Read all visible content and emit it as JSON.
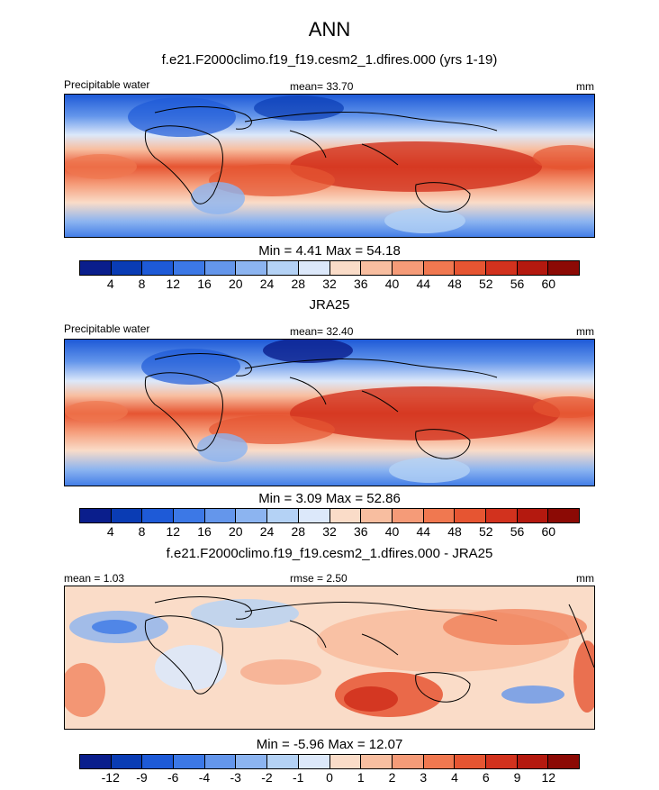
{
  "title": "ANN",
  "panels": [
    {
      "subtitle": "f.e21.F2000climo.f19_f19.cesm2_1.dfires.000 (yrs 1-19)",
      "left_label": "Precipitable water",
      "center_label": "mean=  33.70",
      "right_label": "mm",
      "minmax": "Min =   4.41 Max =  54.18",
      "colorbar": {
        "colors": [
          "#0a1e8c",
          "#0a3cb4",
          "#1e5ad7",
          "#3c78e6",
          "#6496eb",
          "#8cb4f0",
          "#b4d2f5",
          "#dce8fa",
          "#fadcc8",
          "#f8bea0",
          "#f59b78",
          "#f07850",
          "#e65532",
          "#d2321e",
          "#b4190f",
          "#8c0a05"
        ],
        "ticks": [
          "4",
          "8",
          "12",
          "16",
          "20",
          "24",
          "28",
          "32",
          "36",
          "40",
          "44",
          "48",
          "52",
          "56",
          "60"
        ]
      }
    },
    {
      "subtitle": "JRA25",
      "left_label": "Precipitable water",
      "center_label": "mean=  32.40",
      "right_label": "mm",
      "minmax": "Min =   3.09 Max =  52.86",
      "colorbar": {
        "colors": [
          "#0a1e8c",
          "#0a3cb4",
          "#1e5ad7",
          "#3c78e6",
          "#6496eb",
          "#8cb4f0",
          "#b4d2f5",
          "#dce8fa",
          "#fadcc8",
          "#f8bea0",
          "#f59b78",
          "#f07850",
          "#e65532",
          "#d2321e",
          "#b4190f",
          "#8c0a05"
        ],
        "ticks": [
          "4",
          "8",
          "12",
          "16",
          "20",
          "24",
          "28",
          "32",
          "36",
          "40",
          "44",
          "48",
          "52",
          "56",
          "60"
        ]
      }
    },
    {
      "subtitle": "f.e21.F2000climo.f19_f19.cesm2_1.dfires.000 - JRA25",
      "left_label": "mean =   1.03",
      "center_label": "rmse =   2.50",
      "right_label": "mm",
      "minmax": "Min =  -5.96 Max =  12.07",
      "colorbar": {
        "colors": [
          "#0a1e8c",
          "#0a3cb4",
          "#1e5ad7",
          "#3c78e6",
          "#6496eb",
          "#8cb4f0",
          "#b4d2f5",
          "#dce8fa",
          "#fadcc8",
          "#f8bea0",
          "#f59b78",
          "#f07850",
          "#e65532",
          "#d2321e",
          "#b4190f",
          "#8c0a05"
        ],
        "ticks": [
          "-12",
          "-9",
          "-6",
          "-4",
          "-3",
          "-2",
          "-1",
          "0",
          "1",
          "2",
          "3",
          "4",
          "6",
          "9",
          "12"
        ]
      }
    }
  ]
}
